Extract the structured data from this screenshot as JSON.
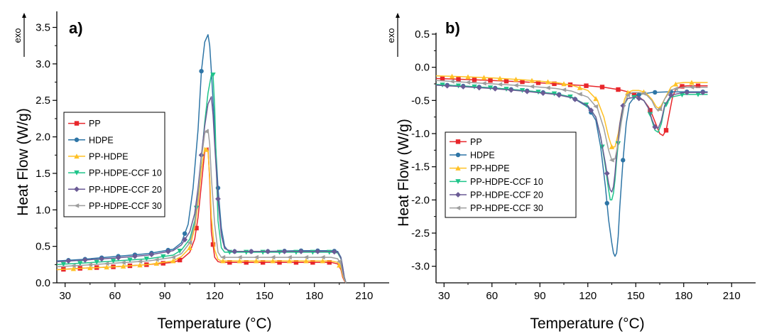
{
  "chart_data": [
    {
      "type": "line",
      "panel_label": "a)",
      "exo_label": "exo",
      "xlabel": "Temperature (°C)",
      "ylabel": "Heat Flow (W/g)",
      "xlim": [
        25,
        225
      ],
      "ylim": [
        0,
        3.7
      ],
      "xticks": [
        30,
        60,
        90,
        120,
        150,
        180,
        210
      ],
      "yticks": [
        0.0,
        0.5,
        1.0,
        1.5,
        2.0,
        2.5,
        3.0,
        3.5
      ],
      "grid": false,
      "legend_position": "middle-left",
      "series": [
        {
          "name": "PP",
          "color": "#e8262b",
          "marker": "square",
          "x": [
            25,
            40,
            60,
            80,
            95,
            100,
            105,
            108,
            110,
            112,
            114,
            116,
            117,
            118,
            120,
            122,
            124,
            130,
            150,
            170,
            190,
            194,
            196,
            197,
            198,
            199
          ],
          "y": [
            0.18,
            0.2,
            0.22,
            0.25,
            0.28,
            0.32,
            0.42,
            0.6,
            0.9,
            1.35,
            1.8,
            1.85,
            1.4,
            0.7,
            0.35,
            0.29,
            0.28,
            0.28,
            0.28,
            0.28,
            0.28,
            0.26,
            0.18,
            0.08,
            0.03,
            0.0
          ]
        },
        {
          "name": "HDPE",
          "color": "#2e75a6",
          "marker": "circle",
          "x": [
            25,
            40,
            60,
            80,
            95,
            100,
            104,
            107,
            110,
            112,
            114,
            116,
            117,
            118,
            120,
            122,
            124,
            126,
            128,
            130,
            150,
            170,
            190,
            194,
            196,
            197,
            198,
            199
          ],
          "y": [
            0.3,
            0.32,
            0.36,
            0.4,
            0.46,
            0.55,
            0.8,
            1.3,
            2.1,
            2.9,
            3.3,
            3.4,
            3.25,
            2.9,
            2.1,
            1.3,
            0.75,
            0.5,
            0.44,
            0.43,
            0.43,
            0.44,
            0.44,
            0.43,
            0.35,
            0.22,
            0.08,
            0.0
          ]
        },
        {
          "name": "PP-HDPE",
          "color": "#ffc125",
          "marker": "triangle-up",
          "x": [
            25,
            40,
            60,
            80,
            95,
            100,
            105,
            108,
            110,
            112,
            114,
            116,
            117,
            118,
            120,
            122,
            124,
            130,
            150,
            170,
            190,
            194,
            196,
            197,
            198,
            199
          ],
          "y": [
            0.18,
            0.2,
            0.22,
            0.25,
            0.3,
            0.36,
            0.48,
            0.75,
            1.1,
            1.55,
            1.85,
            1.8,
            1.45,
            0.9,
            0.45,
            0.32,
            0.3,
            0.3,
            0.3,
            0.3,
            0.3,
            0.28,
            0.2,
            0.1,
            0.04,
            0.0
          ]
        },
        {
          "name": "PP-HDPE-CCF 10",
          "color": "#1ec48a",
          "marker": "triangle-down",
          "x": [
            25,
            40,
            60,
            80,
            95,
            100,
            105,
            108,
            110,
            112,
            114,
            116,
            118,
            119,
            120,
            121,
            122,
            124,
            126,
            130,
            150,
            170,
            190,
            194,
            196,
            197,
            198,
            199
          ],
          "y": [
            0.25,
            0.27,
            0.3,
            0.33,
            0.38,
            0.45,
            0.6,
            0.85,
            1.2,
            1.7,
            2.2,
            2.6,
            2.85,
            2.85,
            2.4,
            1.6,
            0.85,
            0.48,
            0.42,
            0.42,
            0.42,
            0.42,
            0.42,
            0.41,
            0.33,
            0.2,
            0.07,
            0.0
          ]
        },
        {
          "name": "PP-HDPE-CCF 20",
          "color": "#6b5b95",
          "marker": "diamond",
          "x": [
            25,
            40,
            60,
            80,
            95,
            100,
            105,
            108,
            110,
            112,
            114,
            116,
            118,
            119,
            120,
            122,
            124,
            126,
            130,
            150,
            170,
            190,
            194,
            196,
            197,
            198,
            199
          ],
          "y": [
            0.29,
            0.31,
            0.34,
            0.38,
            0.44,
            0.52,
            0.7,
            0.95,
            1.3,
            1.75,
            2.15,
            2.45,
            2.55,
            2.3,
            1.9,
            1.15,
            0.65,
            0.47,
            0.43,
            0.43,
            0.43,
            0.43,
            0.42,
            0.34,
            0.21,
            0.07,
            0.0
          ]
        },
        {
          "name": "PP-HDPE-CCF 30",
          "color": "#9e9e9e",
          "marker": "left-triangle",
          "x": [
            25,
            40,
            60,
            80,
            95,
            100,
            105,
            108,
            110,
            112,
            114,
            116,
            117,
            118,
            120,
            122,
            124,
            130,
            150,
            170,
            190,
            194,
            196,
            197,
            198,
            199
          ],
          "y": [
            0.22,
            0.24,
            0.27,
            0.3,
            0.35,
            0.4,
            0.55,
            0.8,
            1.2,
            1.7,
            2.05,
            2.1,
            1.9,
            1.45,
            0.8,
            0.42,
            0.35,
            0.35,
            0.35,
            0.35,
            0.35,
            0.33,
            0.25,
            0.13,
            0.05,
            0.0
          ]
        }
      ]
    },
    {
      "type": "line",
      "panel_label": "b)",
      "exo_label": "exo",
      "xlabel": "Temperature (°C)",
      "ylabel": "Heat Flow (W/g)",
      "xlim": [
        25,
        225
      ],
      "ylim": [
        -3.25,
        0.5
      ],
      "xticks": [
        30,
        60,
        90,
        120,
        150,
        180,
        210
      ],
      "yticks": [
        0.5,
        0.0,
        -0.5,
        -1.0,
        -1.5,
        -2.0,
        -2.5,
        -3.0
      ],
      "grid": false,
      "legend_position": "middle-left",
      "series": [
        {
          "name": "PP",
          "color": "#e8262b",
          "marker": "square",
          "x": [
            25,
            40,
            60,
            80,
            100,
            120,
            130,
            140,
            145,
            150,
            155,
            158,
            160,
            163,
            165,
            167,
            169,
            171,
            173,
            175,
            178,
            182,
            190,
            195
          ],
          "y": [
            -0.17,
            -0.18,
            -0.2,
            -0.22,
            -0.25,
            -0.28,
            -0.3,
            -0.34,
            -0.37,
            -0.42,
            -0.5,
            -0.6,
            -0.7,
            -0.88,
            -1.0,
            -1.03,
            -0.95,
            -0.7,
            -0.45,
            -0.33,
            -0.29,
            -0.28,
            -0.28,
            -0.28
          ]
        },
        {
          "name": "HDPE",
          "color": "#2e75a6",
          "marker": "circle",
          "x": [
            25,
            40,
            60,
            80,
            100,
            110,
            120,
            125,
            128,
            131,
            133,
            135,
            136,
            137,
            138,
            139,
            140,
            142,
            144,
            146,
            150,
            160,
            170,
            180,
            195
          ],
          "y": [
            -0.26,
            -0.28,
            -0.31,
            -0.35,
            -0.4,
            -0.45,
            -0.6,
            -0.8,
            -1.2,
            -1.8,
            -2.3,
            -2.65,
            -2.8,
            -2.85,
            -2.8,
            -2.55,
            -2.1,
            -1.4,
            -0.85,
            -0.55,
            -0.42,
            -0.38,
            -0.37,
            -0.37,
            -0.37
          ]
        },
        {
          "name": "PP-HDPE",
          "color": "#ffc125",
          "marker": "triangle-up",
          "x": [
            25,
            40,
            60,
            80,
            100,
            110,
            120,
            126,
            130,
            133,
            135,
            137,
            139,
            141,
            143,
            145,
            148,
            152,
            156,
            160,
            163,
            165,
            168,
            172,
            176,
            180,
            195
          ],
          "y": [
            -0.13,
            -0.14,
            -0.16,
            -0.19,
            -0.23,
            -0.27,
            -0.35,
            -0.5,
            -0.75,
            -1.05,
            -1.2,
            -1.2,
            -1.0,
            -0.7,
            -0.48,
            -0.38,
            -0.35,
            -0.35,
            -0.38,
            -0.48,
            -0.6,
            -0.62,
            -0.48,
            -0.3,
            -0.24,
            -0.23,
            -0.23
          ]
        },
        {
          "name": "PP-HDPE-CCF 10",
          "color": "#1ec48a",
          "marker": "triangle-down",
          "x": [
            25,
            40,
            60,
            80,
            100,
            110,
            120,
            125,
            128,
            131,
            133,
            134,
            135,
            136,
            137,
            138,
            140,
            142,
            145,
            150,
            155,
            158,
            160,
            162,
            164,
            166,
            168,
            172,
            180,
            195
          ],
          "y": [
            -0.26,
            -0.28,
            -0.31,
            -0.35,
            -0.4,
            -0.45,
            -0.58,
            -0.75,
            -1.05,
            -1.5,
            -1.85,
            -2.0,
            -2.0,
            -1.9,
            -1.7,
            -1.4,
            -0.9,
            -0.6,
            -0.47,
            -0.45,
            -0.5,
            -0.62,
            -0.8,
            -0.95,
            -0.98,
            -0.85,
            -0.6,
            -0.45,
            -0.41,
            -0.41
          ]
        },
        {
          "name": "PP-HDPE-CCF 20",
          "color": "#6b5b95",
          "marker": "diamond",
          "x": [
            25,
            40,
            60,
            80,
            100,
            110,
            120,
            125,
            128,
            131,
            133,
            134,
            135,
            136,
            137,
            138,
            140,
            142,
            145,
            150,
            155,
            158,
            160,
            162,
            164,
            166,
            168,
            172,
            180,
            195
          ],
          "y": [
            -0.27,
            -0.29,
            -0.32,
            -0.36,
            -0.41,
            -0.46,
            -0.58,
            -0.75,
            -1.05,
            -1.45,
            -1.75,
            -1.85,
            -1.88,
            -1.8,
            -1.6,
            -1.3,
            -0.85,
            -0.58,
            -0.47,
            -0.45,
            -0.5,
            -0.62,
            -0.78,
            -0.9,
            -0.92,
            -0.8,
            -0.58,
            -0.42,
            -0.38,
            -0.38
          ]
        },
        {
          "name": "PP-HDPE-CCF 30",
          "color": "#9e9e9e",
          "marker": "left-triangle",
          "x": [
            25,
            40,
            60,
            80,
            100,
            110,
            120,
            126,
            130,
            133,
            135,
            137,
            139,
            141,
            143,
            145,
            148,
            152,
            156,
            160,
            162,
            164,
            166,
            168,
            172,
            180,
            195
          ],
          "y": [
            -0.2,
            -0.22,
            -0.25,
            -0.28,
            -0.32,
            -0.36,
            -0.45,
            -0.62,
            -0.92,
            -1.25,
            -1.4,
            -1.38,
            -1.15,
            -0.82,
            -0.55,
            -0.42,
            -0.38,
            -0.38,
            -0.4,
            -0.5,
            -0.6,
            -0.66,
            -0.6,
            -0.48,
            -0.34,
            -0.3,
            -0.3
          ]
        }
      ]
    }
  ]
}
